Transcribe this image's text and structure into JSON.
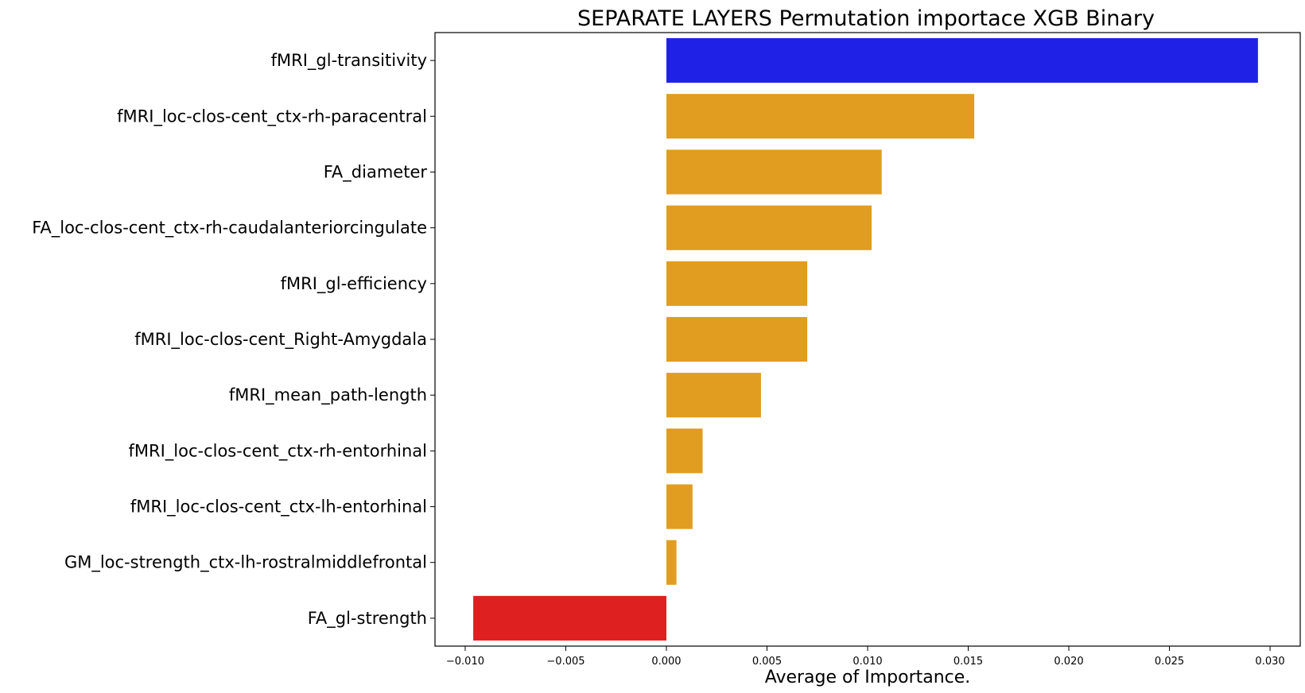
{
  "chart_data": {
    "type": "bar",
    "orientation": "horizontal",
    "title": "SEPARATE LAYERS Permutation importace XGB Binary",
    "xlabel": "Average of Importance.",
    "ylabel": "",
    "xlim": [
      -0.0115,
      0.0315
    ],
    "x_ticks": [
      -0.01,
      -0.005,
      0.0,
      0.005,
      0.01,
      0.015,
      0.02,
      0.025,
      0.03
    ],
    "x_tick_labels": [
      "−0.010",
      "−0.005",
      "0.000",
      "0.005",
      "0.010",
      "0.015",
      "0.020",
      "0.025",
      "0.030"
    ],
    "grid": false,
    "categories": [
      "fMRI_gl-transitivity",
      "fMRI_loc-clos-cent_ctx-rh-paracentral",
      "FA_diameter",
      "FA_loc-clos-cent_ctx-rh-caudalanteriorcingulate",
      "fMRI_gl-efficiency",
      "fMRI_loc-clos-cent_Right-Amygdala",
      "fMRI_mean_path-length",
      "fMRI_loc-clos-cent_ctx-rh-entorhinal",
      "fMRI_loc-clos-cent_ctx-lh-entorhinal",
      "GM_loc-strength_ctx-lh-rostralmiddlefrontal",
      "FA_gl-strength"
    ],
    "values": [
      0.0294,
      0.0153,
      0.0107,
      0.0102,
      0.007,
      0.007,
      0.0047,
      0.0018,
      0.0013,
      0.0005,
      -0.0096
    ],
    "colors": [
      "#1f22e6",
      "#e09d1f",
      "#e09d1f",
      "#e09d1f",
      "#e09d1f",
      "#e09d1f",
      "#e09d1f",
      "#e09d1f",
      "#e09d1f",
      "#e09d1f",
      "#df2020"
    ]
  }
}
